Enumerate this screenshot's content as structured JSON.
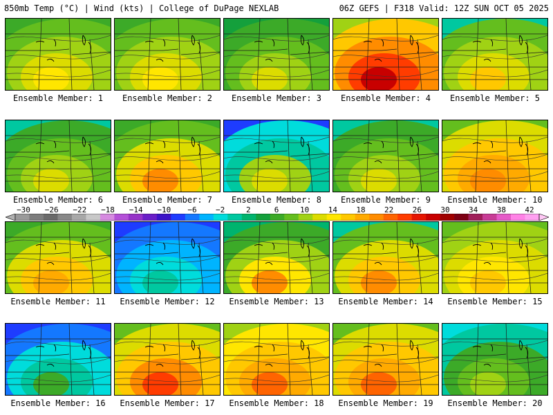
{
  "header": {
    "left": "850mb Temp (°C) | Wind (kts) | College of DuPage NEXLAB",
    "right": "06Z GEFS | F318 Valid: 12Z SUN OCT 05 2025"
  },
  "colorbar": {
    "ticks": [
      "−30",
      "−26",
      "−22",
      "−18",
      "−14",
      "−10",
      "−6",
      "−2",
      "2",
      "6",
      "10",
      "14",
      "18",
      "22",
      "26",
      "30",
      "34",
      "38",
      "42"
    ],
    "colors": [
      "#9a9a9a",
      "#7d7d7d",
      "#6a6a6a",
      "#888888",
      "#a8a8a8",
      "#c8c8c8",
      "#d68ae0",
      "#b450d8",
      "#9632c8",
      "#6a1ec8",
      "#3c14c8",
      "#1e3cff",
      "#1478ff",
      "#00b4ff",
      "#00dcdc",
      "#00c8a0",
      "#00b46e",
      "#14a03c",
      "#3caa28",
      "#64be1e",
      "#a0d214",
      "#dcdc00",
      "#ffe600",
      "#ffc800",
      "#ffaa00",
      "#ff8c00",
      "#ff6400",
      "#ff3c00",
      "#e61400",
      "#c80000",
      "#a00000",
      "#7d0014",
      "#a01e5a",
      "#c83c96",
      "#e65ac8",
      "#ff82e6",
      "#ffa0f0"
    ]
  },
  "panels": [
    {
      "label": "Ensemble Member: 1",
      "colors": [
        "#3caa28",
        "#64be1e",
        "#a0d214",
        "#dcdc00",
        "#ffe600"
      ]
    },
    {
      "label": "Ensemble Member: 2",
      "colors": [
        "#3caa28",
        "#64be1e",
        "#a0d214",
        "#dcdc00",
        "#ffe600"
      ]
    },
    {
      "label": "Ensemble Member: 3",
      "colors": [
        "#14a03c",
        "#3caa28",
        "#64be1e",
        "#a0d214",
        "#dcdc00"
      ]
    },
    {
      "label": "Ensemble Member: 4",
      "colors": [
        "#a0d214",
        "#ffc800",
        "#ff8c00",
        "#ff3c00",
        "#c80000"
      ]
    },
    {
      "label": "Ensemble Member: 5",
      "colors": [
        "#00c8a0",
        "#64be1e",
        "#a0d214",
        "#dcdc00",
        "#ffc800"
      ]
    },
    {
      "label": "Ensemble Member: 6",
      "colors": [
        "#00c8a0",
        "#3caa28",
        "#64be1e",
        "#a0d214",
        "#dcdc00"
      ]
    },
    {
      "label": "Ensemble Member: 7",
      "colors": [
        "#3caa28",
        "#64be1e",
        "#dcdc00",
        "#ffc800",
        "#ff8c00"
      ]
    },
    {
      "label": "Ensemble Member: 8",
      "colors": [
        "#1e3cff",
        "#00dcdc",
        "#00c8a0",
        "#a0d214",
        "#dcdc00"
      ]
    },
    {
      "label": "Ensemble Member: 9",
      "colors": [
        "#00c8a0",
        "#3caa28",
        "#64be1e",
        "#a0d214",
        "#dcdc00"
      ]
    },
    {
      "label": "Ensemble Member: 10",
      "colors": [
        "#64be1e",
        "#dcdc00",
        "#ffc800",
        "#ffaa00",
        "#ff8c00"
      ]
    },
    {
      "label": "Ensemble Member: 11",
      "colors": [
        "#3caa28",
        "#64be1e",
        "#dcdc00",
        "#ffc800",
        "#ffaa00"
      ]
    },
    {
      "label": "Ensemble Member: 12",
      "colors": [
        "#1e3cff",
        "#1478ff",
        "#00b4ff",
        "#00dcdc",
        "#00c8a0"
      ]
    },
    {
      "label": "Ensemble Member: 13",
      "colors": [
        "#00b46e",
        "#3caa28",
        "#a0d214",
        "#ffe600",
        "#ff8c00"
      ]
    },
    {
      "label": "Ensemble Member: 14",
      "colors": [
        "#00c8a0",
        "#64be1e",
        "#dcdc00",
        "#ffc800",
        "#ff8c00"
      ]
    },
    {
      "label": "Ensemble Member: 15",
      "colors": [
        "#64be1e",
        "#a0d214",
        "#dcdc00",
        "#ffe600",
        "#ffc800"
      ]
    },
    {
      "label": "Ensemble Member: 16",
      "colors": [
        "#1e3cff",
        "#1478ff",
        "#00dcdc",
        "#00c8a0",
        "#3caa28"
      ]
    },
    {
      "label": "Ensemble Member: 17",
      "colors": [
        "#64be1e",
        "#dcdc00",
        "#ffc800",
        "#ff8c00",
        "#ff3c00"
      ]
    },
    {
      "label": "Ensemble Member: 18",
      "colors": [
        "#a0d214",
        "#ffe600",
        "#ffc800",
        "#ffaa00",
        "#ff6400"
      ]
    },
    {
      "label": "Ensemble Member: 19",
      "colors": [
        "#64be1e",
        "#dcdc00",
        "#ffc800",
        "#ffaa00",
        "#ff6400"
      ]
    },
    {
      "label": "Ensemble Member: 20",
      "colors": [
        "#00dcdc",
        "#00c8a0",
        "#3caa28",
        "#64be1e",
        "#a0d214"
      ]
    }
  ]
}
